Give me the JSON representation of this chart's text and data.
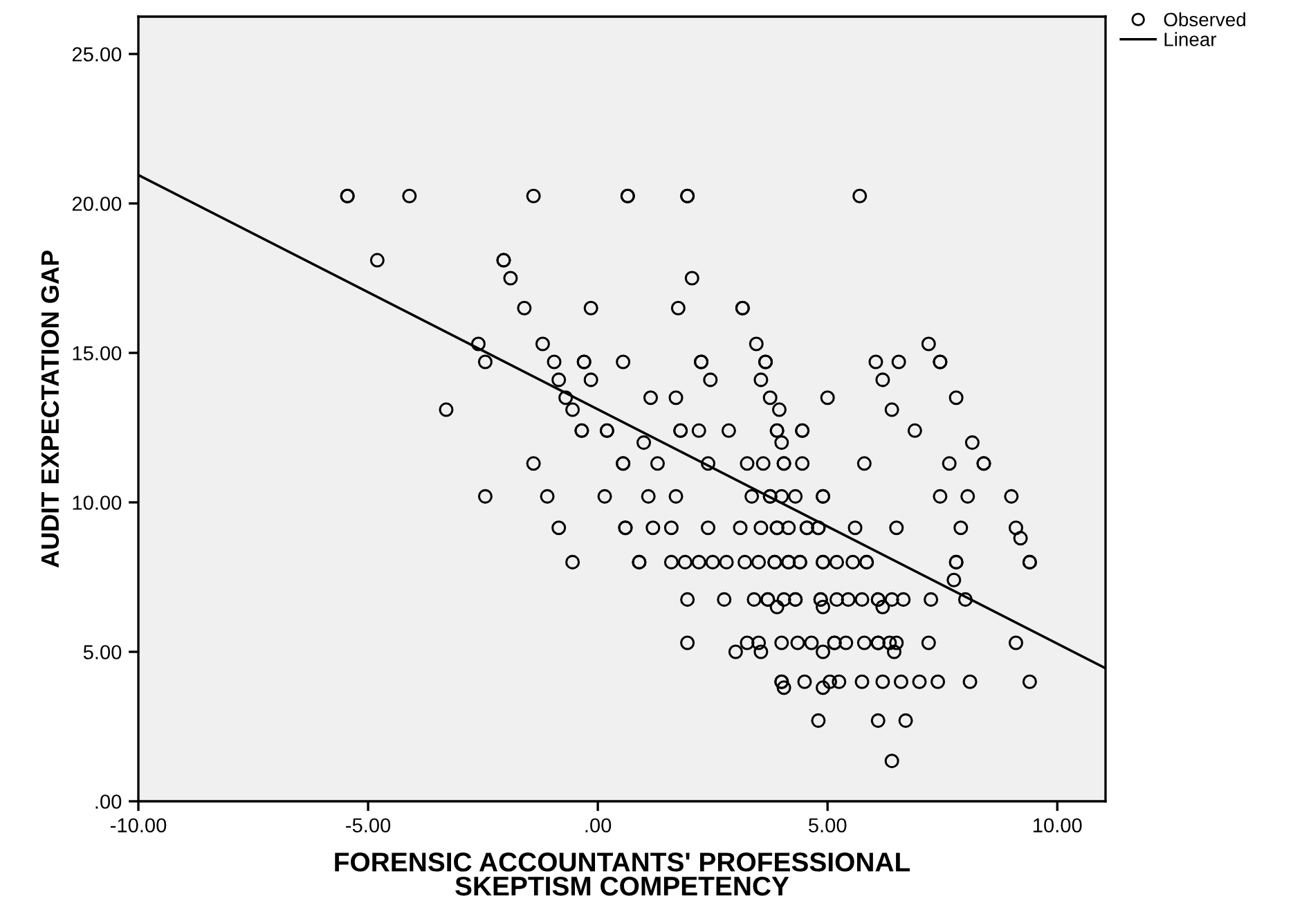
{
  "chart_data": {
    "type": "scatter",
    "xlabel": "FORENSIC ACCOUNTANTS' PROFESSIONAL\nSKEPTISM COMPETENCY",
    "ylabel": "AUDIT EXPECTATION GAP",
    "xlim": [
      -10,
      11.05
    ],
    "ylim": [
      0,
      26.25
    ],
    "xticks": [
      {
        "value": -10,
        "label": "-10.00"
      },
      {
        "value": -5,
        "label": "-5.00"
      },
      {
        "value": 0,
        "label": ".00"
      },
      {
        "value": 5,
        "label": "5.00"
      },
      {
        "value": 10,
        "label": "10.00"
      }
    ],
    "yticks": [
      {
        "value": 0,
        "label": ".00"
      },
      {
        "value": 5,
        "label": "5.00"
      },
      {
        "value": 10,
        "label": "10.00"
      },
      {
        "value": 15,
        "label": "15.00"
      },
      {
        "value": 20,
        "label": "20.00"
      },
      {
        "value": 25,
        "label": "25.00"
      }
    ],
    "grid": false,
    "legend": "top right",
    "series": [
      {
        "name": "Observed",
        "marker": "circle",
        "color": "#000000",
        "x": [
          -5.45,
          -5.45,
          -4.1,
          -1.4,
          0.65,
          0.65,
          1.95,
          1.95,
          5.7,
          -4.8,
          -2.05,
          -2.05,
          -1.9,
          2.05,
          -1.6,
          -0.15,
          1.75,
          3.15,
          3.15,
          -2.6,
          -1.2,
          3.45,
          7.2,
          -2.45,
          -0.95,
          -0.3,
          -0.3,
          0.55,
          2.25,
          2.25,
          3.65,
          3.65,
          6.05,
          6.55,
          7.45,
          7.45,
          -0.85,
          -0.15,
          2.45,
          3.55,
          6.2,
          -3.3,
          -0.55,
          3.95,
          6.4,
          -0.7,
          1.15,
          1.7,
          3.75,
          5.0,
          7.8,
          -0.35,
          -0.35,
          0.2,
          0.2,
          1.8,
          1.8,
          2.2,
          2.85,
          3.9,
          3.9,
          4.45,
          4.45,
          6.9,
          1.0,
          4.0,
          8.15,
          -1.4,
          0.55,
          0.55,
          1.3,
          2.4,
          3.25,
          3.6,
          4.05,
          4.05,
          4.45,
          5.8,
          7.65,
          8.4,
          8.4,
          -2.45,
          -1.1,
          0.15,
          1.1,
          1.7,
          3.35,
          3.75,
          3.75,
          4.0,
          4.3,
          4.9,
          4.9,
          7.45,
          8.05,
          9.0,
          -0.85,
          0.6,
          0.6,
          1.2,
          1.6,
          2.4,
          3.1,
          3.55,
          3.9,
          3.9,
          4.15,
          4.55,
          4.55,
          4.8,
          4.8,
          5.6,
          6.5,
          7.9,
          9.1,
          -0.55,
          0.9,
          0.9,
          1.6,
          1.9,
          2.2,
          2.5,
          2.8,
          3.2,
          3.5,
          3.85,
          3.85,
          4.15,
          4.15,
          4.4,
          4.4,
          4.9,
          4.9,
          5.2,
          5.55,
          5.85,
          5.85,
          7.8,
          7.8,
          9.4,
          9.4,
          9.2,
          7.75,
          1.95,
          2.75,
          3.4,
          3.7,
          3.7,
          4.05,
          4.3,
          4.3,
          4.85,
          4.85,
          5.2,
          5.45,
          5.75,
          6.1,
          6.1,
          6.4,
          6.65,
          7.25,
          8.0,
          3.9,
          4.9,
          6.2,
          1.95,
          3.25,
          3.5,
          4.0,
          4.35,
          4.65,
          5.15,
          5.15,
          5.4,
          5.8,
          6.1,
          6.1,
          6.35,
          6.5,
          7.2,
          9.1,
          3.0,
          3.55,
          4.9,
          6.45,
          4.0,
          4.0,
          4.5,
          5.05,
          5.25,
          5.75,
          6.2,
          6.6,
          7.0,
          7.4,
          8.1,
          9.4,
          4.05,
          4.9,
          4.8,
          6.1,
          6.7,
          6.4
        ],
        "values": [
          20.25,
          20.25,
          20.25,
          20.25,
          20.25,
          20.25,
          20.25,
          20.25,
          20.25,
          18.1,
          18.1,
          18.1,
          17.5,
          17.5,
          16.5,
          16.5,
          16.5,
          16.5,
          16.5,
          15.3,
          15.3,
          15.3,
          15.3,
          14.7,
          14.7,
          14.7,
          14.7,
          14.7,
          14.7,
          14.7,
          14.7,
          14.7,
          14.7,
          14.7,
          14.7,
          14.7,
          14.1,
          14.1,
          14.1,
          14.1,
          14.1,
          13.1,
          13.1,
          13.1,
          13.1,
          13.5,
          13.5,
          13.5,
          13.5,
          13.5,
          13.5,
          12.4,
          12.4,
          12.4,
          12.4,
          12.4,
          12.4,
          12.4,
          12.4,
          12.4,
          12.4,
          12.4,
          12.4,
          12.4,
          12.0,
          12.0,
          12.0,
          11.3,
          11.3,
          11.3,
          11.3,
          11.3,
          11.3,
          11.3,
          11.3,
          11.3,
          11.3,
          11.3,
          11.3,
          11.3,
          11.3,
          10.2,
          10.2,
          10.2,
          10.2,
          10.2,
          10.2,
          10.2,
          10.2,
          10.2,
          10.2,
          10.2,
          10.2,
          10.2,
          10.2,
          10.2,
          9.15,
          9.15,
          9.15,
          9.15,
          9.15,
          9.15,
          9.15,
          9.15,
          9.15,
          9.15,
          9.15,
          9.15,
          9.15,
          9.15,
          9.15,
          9.15,
          9.15,
          9.15,
          9.15,
          8.0,
          8.0,
          8.0,
          8.0,
          8.0,
          8.0,
          8.0,
          8.0,
          8.0,
          8.0,
          8.0,
          8.0,
          8.0,
          8.0,
          8.0,
          8.0,
          8.0,
          8.0,
          8.0,
          8.0,
          8.0,
          8.0,
          8.0,
          8.0,
          8.0,
          8.0,
          8.8,
          7.4,
          6.75,
          6.75,
          6.75,
          6.75,
          6.75,
          6.75,
          6.75,
          6.75,
          6.75,
          6.75,
          6.75,
          6.75,
          6.75,
          6.75,
          6.75,
          6.75,
          6.75,
          6.75,
          6.75,
          6.5,
          6.5,
          6.5,
          5.3,
          5.3,
          5.3,
          5.3,
          5.3,
          5.3,
          5.3,
          5.3,
          5.3,
          5.3,
          5.3,
          5.3,
          5.3,
          5.3,
          5.3,
          5.3,
          5.0,
          5.0,
          5.0,
          5.0,
          4.0,
          4.0,
          4.0,
          4.0,
          4.0,
          4.0,
          4.0,
          4.0,
          4.0,
          4.0,
          4.0,
          4.0,
          3.8,
          3.8,
          2.7,
          2.7,
          2.7,
          1.35
        ]
      },
      {
        "name": "Linear",
        "type": "line",
        "color": "#000000",
        "line_style": "solid",
        "marker": "none",
        "x": [
          -10,
          11.05
        ],
        "values": [
          20.95,
          4.45
        ]
      }
    ]
  }
}
